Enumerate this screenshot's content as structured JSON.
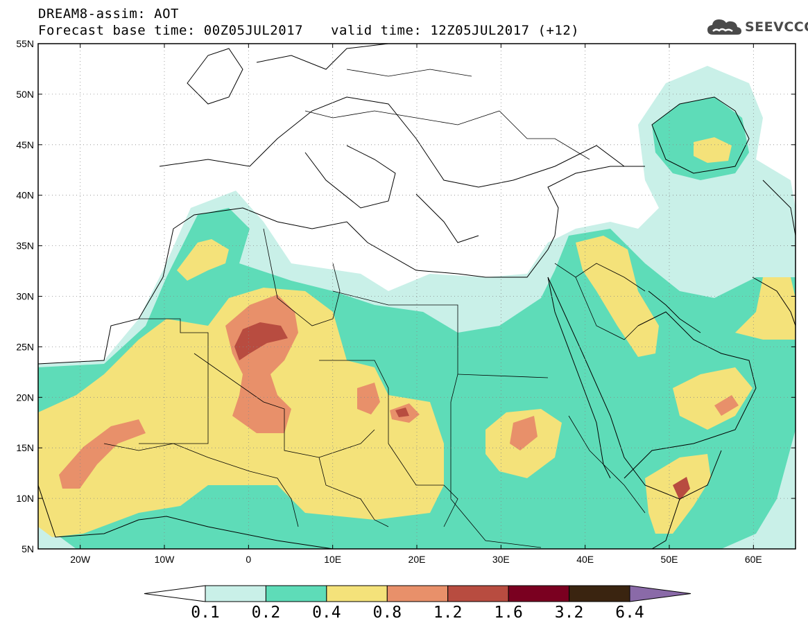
{
  "header": {
    "line1": "DREAM8-assim: AOT",
    "base_time": "Forecast base time: 00Z05JUL2017",
    "valid_time": "valid time: 12Z05JUL2017 (+12)"
  },
  "logo": {
    "text": "SEEVCCC",
    "icon": "cloud-icon"
  },
  "map": {
    "lat_labels": [
      "55N",
      "50N",
      "45N",
      "40N",
      "35N",
      "30N",
      "25N",
      "20N",
      "15N",
      "10N",
      "5N"
    ],
    "lon_labels": [
      "20W",
      "10W",
      "0",
      "10E",
      "20E",
      "30E",
      "40E",
      "50E",
      "60E"
    ],
    "lat_range": [
      5,
      55
    ],
    "lon_range": [
      -25,
      65
    ],
    "grid": "dotted"
  },
  "colorbar": {
    "labels": [
      "0.1",
      "0.2",
      "0.4",
      "0.8",
      "1.2",
      "1.6",
      "3.2",
      "6.4"
    ],
    "colors": [
      "#ffffff",
      "#c9f0e8",
      "#5edcb8",
      "#f4e27a",
      "#e8906a",
      "#b84c40",
      "#7a0020",
      "#3a2410",
      "#8a6aa8"
    ]
  }
}
